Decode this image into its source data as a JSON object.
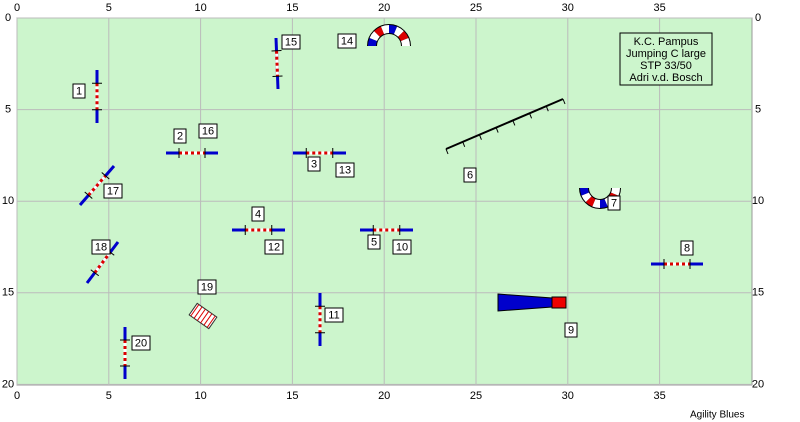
{
  "axes": {
    "x_ticks": [
      0,
      5,
      10,
      15,
      20,
      25,
      30,
      35
    ],
    "y_ticks": [
      0,
      5,
      10,
      15,
      20
    ]
  },
  "info": [
    "K.C. Pampus",
    "Jumping C large",
    "STP 33/50",
    "Adri v.d. Bosch"
  ],
  "obstacles": [
    {
      "label": "1"
    },
    {
      "label": "2"
    },
    {
      "label": "3"
    },
    {
      "label": "4"
    },
    {
      "label": "5"
    },
    {
      "label": "6"
    },
    {
      "label": "7"
    },
    {
      "label": "8"
    },
    {
      "label": "9"
    },
    {
      "label": "10"
    },
    {
      "label": "11"
    },
    {
      "label": "12"
    },
    {
      "label": "13"
    },
    {
      "label": "14"
    },
    {
      "label": "15"
    },
    {
      "label": "16"
    },
    {
      "label": "17"
    },
    {
      "label": "18"
    },
    {
      "label": "19"
    },
    {
      "label": "20"
    }
  ],
  "footer": "Agility Blues"
}
